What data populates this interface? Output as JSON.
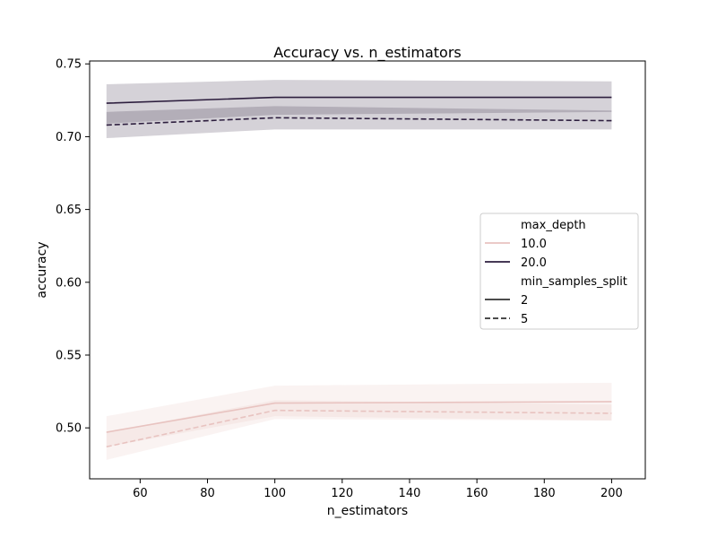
{
  "chart_data": {
    "type": "line",
    "title": "Accuracy vs. n_estimators",
    "xlabel": "n_estimators",
    "ylabel": "accuracy",
    "xlim": [
      45,
      210
    ],
    "ylim": [
      0.465,
      0.752
    ],
    "x_ticks": [
      60,
      80,
      100,
      120,
      140,
      160,
      180,
      200
    ],
    "y_ticks": [
      0.5,
      0.55,
      0.6,
      0.65,
      0.7,
      0.75
    ],
    "x": [
      50,
      100,
      200
    ],
    "grid": false,
    "legend_position": "center-right",
    "legend": {
      "hue_title": "max_depth",
      "hue_entries": [
        {
          "label": "10.0",
          "color": "#e8c3c0"
        },
        {
          "label": "20.0",
          "color": "#2d1e3e"
        }
      ],
      "style_title": "min_samples_split",
      "style_entries": [
        {
          "label": "2",
          "dash": "solid"
        },
        {
          "label": "5",
          "dash": "dashed"
        }
      ]
    },
    "series": [
      {
        "max_depth": "20.0",
        "min_samples_split": "2",
        "color": "#2d1e3e",
        "dash": "solid",
        "values": [
          0.723,
          0.727,
          0.727
        ],
        "ci_low": [
          0.709,
          0.715,
          0.717
        ],
        "ci_high": [
          0.736,
          0.739,
          0.738
        ]
      },
      {
        "max_depth": "20.0",
        "min_samples_split": "5",
        "color": "#2d1e3e",
        "dash": "dashed",
        "values": [
          0.708,
          0.713,
          0.711
        ],
        "ci_low": [
          0.699,
          0.705,
          0.705
        ],
        "ci_high": [
          0.717,
          0.721,
          0.718
        ]
      },
      {
        "max_depth": "10.0",
        "min_samples_split": "2",
        "color": "#e8c3c0",
        "dash": "solid",
        "values": [
          0.497,
          0.517,
          0.518
        ],
        "ci_low": [
          0.487,
          0.508,
          0.505
        ],
        "ci_high": [
          0.508,
          0.529,
          0.531
        ]
      },
      {
        "max_depth": "10.0",
        "min_samples_split": "5",
        "color": "#e8c3c0",
        "dash": "dashed",
        "values": [
          0.487,
          0.512,
          0.51
        ],
        "ci_low": [
          0.478,
          0.506,
          0.505
        ],
        "ci_high": [
          0.497,
          0.519,
          0.516
        ]
      }
    ]
  }
}
